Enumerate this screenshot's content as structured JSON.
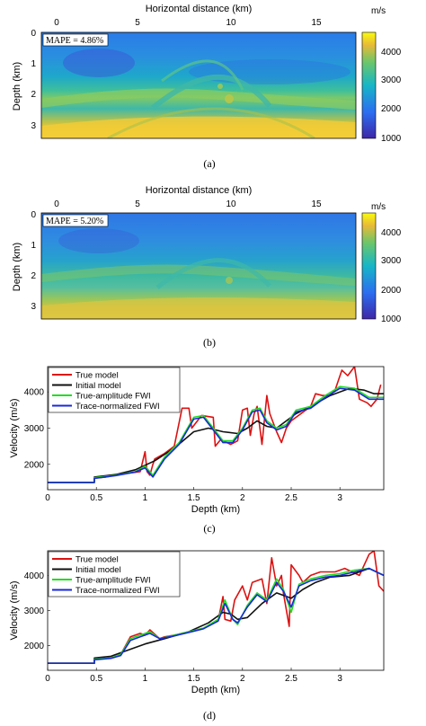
{
  "captions": [
    "(a)",
    "(b)",
    "(c)",
    "(d)"
  ],
  "panel_a": {
    "xlabel": "Horizontal distance (km)",
    "ylabel": "Depth (km)",
    "xticks": [
      "0",
      "5",
      "10",
      "15"
    ],
    "yticks": [
      "0",
      "1",
      "2",
      "3"
    ],
    "colorbar_unit": "m/s",
    "colorbar_ticks": [
      "4000",
      "3000",
      "2000",
      "1000"
    ],
    "mape": "MAPE = 4.86%",
    "colors": {
      "low": "#3b1fb5",
      "mid": "#21a4c9",
      "high": "#f6e62b"
    }
  },
  "panel_b": {
    "xlabel": "Horizontal distance (km)",
    "ylabel": "Depth (km)",
    "xticks": [
      "0",
      "5",
      "10",
      "15"
    ],
    "yticks": [
      "0",
      "1",
      "2",
      "3"
    ],
    "colorbar_unit": "m/s",
    "colorbar_ticks": [
      "4000",
      "3000",
      "2000",
      "1000"
    ],
    "mape": "MAPE = 5.20%"
  },
  "chart_data": [
    {
      "type": "line",
      "panel": "(c)",
      "xlabel": "Depth (km)",
      "ylabel": "Velocity (m/s)",
      "xlim": [
        0,
        3.45
      ],
      "ylim": [
        1300,
        4700
      ],
      "xticks": [
        "0",
        "0.5",
        "1",
        "1.5",
        "2",
        "2.5",
        "3"
      ],
      "yticks": [
        "2000",
        "3000",
        "4000"
      ],
      "legend": "top-left",
      "series": [
        {
          "name": "True model",
          "color": "#dd1111",
          "x": [
            0,
            0.48,
            0.48,
            0.6,
            0.7,
            0.8,
            0.95,
            1.0,
            1.02,
            1.05,
            1.08,
            1.1,
            1.2,
            1.3,
            1.38,
            1.45,
            1.48,
            1.58,
            1.7,
            1.72,
            1.78,
            1.8,
            1.88,
            1.95,
            2.0,
            2.05,
            2.08,
            2.12,
            2.15,
            2.2,
            2.25,
            2.28,
            2.35,
            2.4,
            2.45,
            2.5,
            2.6,
            2.7,
            2.75,
            2.82,
            2.9,
            2.95,
            3.02,
            3.08,
            3.15,
            3.2,
            3.28,
            3.32,
            3.38,
            3.42
          ],
          "y": [
            1500,
            1500,
            1620,
            1650,
            1700,
            1750,
            1800,
            2350,
            1800,
            1700,
            2000,
            2150,
            2300,
            2500,
            3550,
            3550,
            3000,
            3350,
            3300,
            2500,
            2700,
            2650,
            2550,
            2650,
            3500,
            3550,
            2800,
            3400,
            3600,
            2550,
            3900,
            3400,
            2900,
            2600,
            3000,
            3200,
            3400,
            3600,
            3950,
            3900,
            3900,
            4050,
            4600,
            4450,
            4700,
            3800,
            3700,
            3600,
            3800,
            4200
          ]
        },
        {
          "name": "Initial model",
          "color": "#111111",
          "x": [
            0,
            0.48,
            0.48,
            0.7,
            0.9,
            1.1,
            1.3,
            1.5,
            1.65,
            1.8,
            1.95,
            2.05,
            2.15,
            2.25,
            2.35,
            2.45,
            2.55,
            2.7,
            2.9,
            3.1,
            3.25,
            3.35,
            3.45
          ],
          "y": [
            1500,
            1500,
            1650,
            1720,
            1850,
            2100,
            2450,
            2900,
            3000,
            2900,
            2850,
            3000,
            3200,
            3050,
            3000,
            3200,
            3400,
            3600,
            3900,
            4100,
            4050,
            3950,
            3950
          ]
        },
        {
          "name": "True-amplitude FWI",
          "color": "#22dd22",
          "x": [
            0,
            0.48,
            0.48,
            0.7,
            0.9,
            1.0,
            1.08,
            1.2,
            1.35,
            1.5,
            1.6,
            1.7,
            1.8,
            1.9,
            2.0,
            2.1,
            2.18,
            2.25,
            2.35,
            2.45,
            2.55,
            2.7,
            2.85,
            3.0,
            3.15,
            3.3,
            3.45
          ],
          "y": [
            1500,
            1500,
            1630,
            1700,
            1800,
            1950,
            1700,
            2200,
            2600,
            3300,
            3350,
            3000,
            2650,
            2650,
            3000,
            3500,
            3550,
            3200,
            3000,
            3100,
            3500,
            3600,
            3900,
            4150,
            4100,
            3850,
            3850
          ]
        },
        {
          "name": "Trace-normalized FWI",
          "color": "#1a2ad8",
          "x": [
            0,
            0.48,
            0.48,
            0.7,
            0.9,
            1.0,
            1.08,
            1.2,
            1.35,
            1.5,
            1.6,
            1.7,
            1.8,
            1.9,
            2.0,
            2.1,
            2.18,
            2.25,
            2.35,
            2.45,
            2.55,
            2.7,
            2.85,
            3.0,
            3.15,
            3.3,
            3.45
          ],
          "y": [
            1500,
            1500,
            1610,
            1690,
            1790,
            1900,
            1650,
            2150,
            2550,
            3250,
            3300,
            2950,
            2600,
            2600,
            2950,
            3450,
            3500,
            3150,
            2950,
            3050,
            3450,
            3550,
            3850,
            4100,
            4050,
            3800,
            3800
          ]
        }
      ]
    },
    {
      "type": "line",
      "panel": "(d)",
      "xlabel": "Depth (km)",
      "ylabel": "Velocity (m/s)",
      "xlim": [
        0,
        3.45
      ],
      "ylim": [
        1300,
        4700
      ],
      "xticks": [
        "0",
        "0.5",
        "1",
        "1.5",
        "2",
        "2.5",
        "3"
      ],
      "yticks": [
        "2000",
        "3000",
        "4000"
      ],
      "legend": "top-left",
      "series": [
        {
          "name": "True model",
          "color": "#dd1111",
          "x": [
            0,
            0.48,
            0.48,
            0.65,
            0.75,
            0.8,
            0.85,
            0.95,
            1.0,
            1.05,
            1.15,
            1.2,
            1.3,
            1.45,
            1.6,
            1.75,
            1.8,
            1.82,
            1.88,
            1.92,
            2.0,
            2.05,
            2.1,
            2.2,
            2.25,
            2.3,
            2.35,
            2.4,
            2.42,
            2.48,
            2.5,
            2.58,
            2.62,
            2.7,
            2.8,
            2.95,
            3.05,
            3.2,
            3.3,
            3.35,
            3.4,
            3.45
          ],
          "y": [
            1500,
            1500,
            1620,
            1650,
            1750,
            2000,
            2250,
            2350,
            2300,
            2450,
            2200,
            2250,
            2300,
            2400,
            2500,
            2700,
            3400,
            2750,
            2700,
            3300,
            3700,
            3300,
            3800,
            3900,
            3200,
            4500,
            3700,
            4000,
            3500,
            2550,
            4300,
            4000,
            3800,
            4000,
            4100,
            4100,
            4200,
            4000,
            4600,
            4700,
            3700,
            3550
          ]
        },
        {
          "name": "Initial model",
          "color": "#111111",
          "x": [
            0,
            0.48,
            0.48,
            0.65,
            0.8,
            1.0,
            1.2,
            1.45,
            1.65,
            1.8,
            1.88,
            1.95,
            2.05,
            2.2,
            2.35,
            2.5,
            2.62,
            2.75,
            2.9,
            3.1,
            3.3,
            3.45
          ],
          "y": [
            1500,
            1500,
            1650,
            1700,
            1850,
            2050,
            2200,
            2400,
            2650,
            2950,
            2900,
            2750,
            2800,
            3200,
            3500,
            3350,
            3600,
            3800,
            3950,
            4000,
            4200,
            4000
          ]
        },
        {
          "name": "True-amplitude FWI",
          "color": "#22dd22",
          "x": [
            0,
            0.48,
            0.48,
            0.65,
            0.75,
            0.85,
            0.95,
            1.05,
            1.15,
            1.3,
            1.45,
            1.6,
            1.75,
            1.82,
            1.9,
            1.95,
            2.05,
            2.15,
            2.25,
            2.35,
            2.42,
            2.5,
            2.58,
            2.7,
            2.85,
            3.0,
            3.15,
            3.3,
            3.45
          ],
          "y": [
            1500,
            1500,
            1620,
            1650,
            1750,
            2200,
            2300,
            2400,
            2200,
            2300,
            2400,
            2500,
            2750,
            3300,
            2750,
            2600,
            3150,
            3500,
            3300,
            3900,
            3600,
            2950,
            3750,
            3900,
            4000,
            4050,
            4150,
            4200,
            4000
          ]
        },
        {
          "name": "Trace-normalized FWI",
          "color": "#1a2ad8",
          "x": [
            0,
            0.48,
            0.48,
            0.65,
            0.75,
            0.85,
            0.95,
            1.05,
            1.15,
            1.3,
            1.45,
            1.6,
            1.75,
            1.82,
            1.9,
            1.95,
            2.05,
            2.15,
            2.25,
            2.35,
            2.42,
            2.5,
            2.58,
            2.7,
            2.85,
            3.0,
            3.15,
            3.3,
            3.45
          ],
          "y": [
            1500,
            1500,
            1600,
            1640,
            1720,
            2150,
            2250,
            2350,
            2200,
            2280,
            2380,
            2480,
            2700,
            3200,
            2750,
            2650,
            3100,
            3450,
            3250,
            3800,
            3550,
            3100,
            3700,
            3850,
            3950,
            4000,
            4100,
            4200,
            4000
          ]
        }
      ]
    }
  ]
}
